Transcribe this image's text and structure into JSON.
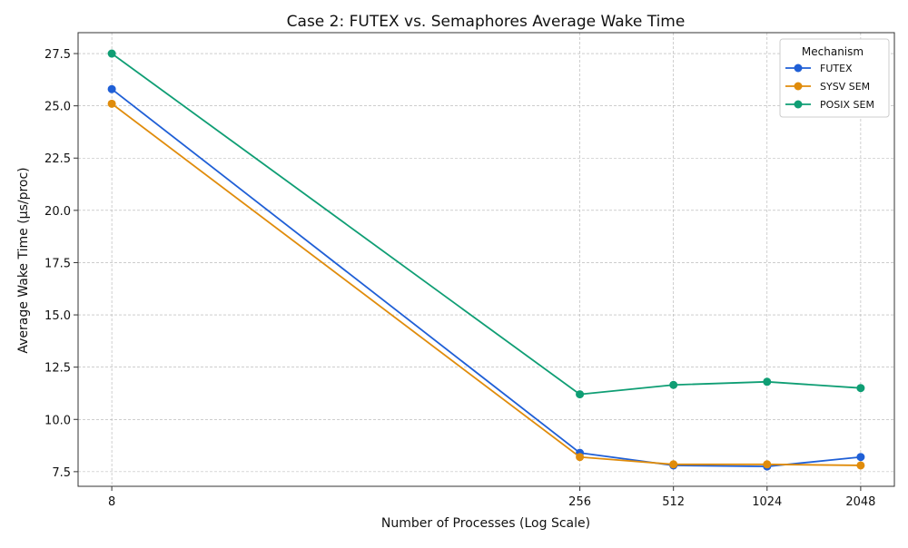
{
  "chart_data": {
    "type": "line",
    "title": "Case 2: FUTEX vs. Semaphores Average Wake Time",
    "xlabel": "Number of Processes (Log Scale)",
    "ylabel": "Average Wake Time (μs/proc)",
    "x_scale": "log2",
    "x": [
      8,
      256,
      512,
      1024,
      2048
    ],
    "x_tick_labels": [
      "8",
      "256",
      "512",
      "1024",
      "2048"
    ],
    "y_ticks": [
      7.5,
      10.0,
      12.5,
      15.0,
      17.5,
      20.0,
      22.5,
      25.0,
      27.5
    ],
    "y_tick_labels": [
      "7.5",
      "10.0",
      "12.5",
      "15.0",
      "17.5",
      "20.0",
      "22.5",
      "25.0",
      "27.5"
    ],
    "ylim": [
      6.8,
      28.5
    ],
    "grid": true,
    "legend": {
      "title": "Mechanism",
      "position": "top-right"
    },
    "series": [
      {
        "name": "FUTEX",
        "color": "#1f5fd6",
        "values": [
          25.8,
          8.4,
          7.8,
          7.75,
          8.2
        ]
      },
      {
        "name": "SYSV SEM",
        "color": "#e08c0b",
        "values": [
          25.1,
          8.2,
          7.85,
          7.85,
          7.8
        ]
      },
      {
        "name": "POSIX SEM",
        "color": "#0f9e74",
        "values": [
          27.5,
          11.2,
          11.65,
          11.8,
          11.5
        ]
      }
    ]
  }
}
